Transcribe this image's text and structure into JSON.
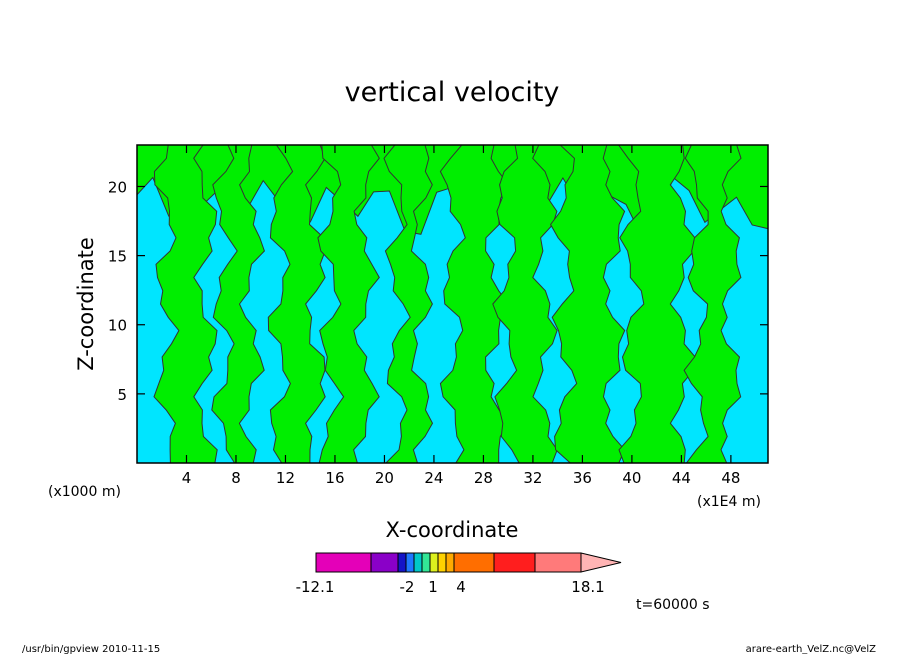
{
  "chart_data": {
    "type": "heatmap",
    "title": "vertical velocity",
    "xlabel": "X-coordinate",
    "ylabel": "Z-coordinate",
    "x_unit_left": "(x1000 m)",
    "x_unit_right": "(x1E4 m)",
    "xlim": [
      0,
      51
    ],
    "ylim": [
      0,
      23
    ],
    "x_ticks": [
      4,
      8,
      12,
      16,
      20,
      24,
      28,
      32,
      36,
      40,
      44,
      48
    ],
    "y_ticks": [
      5,
      10,
      15,
      20
    ],
    "field_colors": {
      "positive": "#00ee00",
      "negative": "#00e5ff"
    },
    "green_columns": [
      {
        "x0": 2.3,
        "x1": 5.6
      },
      {
        "x0": 7.0,
        "x1": 9.3
      },
      {
        "x0": 11.5,
        "x1": 14.5
      },
      {
        "x0": 15.6,
        "x1": 18.5
      },
      {
        "x0": 21.0,
        "x1": 23.0
      },
      {
        "x0": 25.5,
        "x1": 29.0
      },
      {
        "x0": 29.8,
        "x1": 33.0
      },
      {
        "x0": 34.5,
        "x1": 38.5
      },
      {
        "x0": 40.0,
        "x1": 44.2
      },
      {
        "x0": 45.3,
        "x1": 48.0
      }
    ],
    "green_top_band": {
      "y0": 18.5,
      "y1": 23
    },
    "colorbar": {
      "colors": [
        "#e400b8",
        "#8a00c8",
        "#1414c8",
        "#1e78ff",
        "#00c8c8",
        "#32e696",
        "#dcf01e",
        "#ffd200",
        "#ffaa00",
        "#ff6e00",
        "#ff1e1e",
        "#ff7a7a",
        "#ffb4b4"
      ],
      "widths": [
        55,
        27,
        8,
        8,
        8,
        8,
        8,
        8,
        8,
        40,
        41,
        46,
        40
      ],
      "tick_labels": [
        "-12.1",
        "-2",
        "1",
        "4",
        "18.1"
      ]
    },
    "time_label": "t=60000 s"
  },
  "footer": {
    "left": "/usr/bin/gpview   2010-11-15",
    "right": "arare-earth_VelZ.nc@VelZ"
  }
}
